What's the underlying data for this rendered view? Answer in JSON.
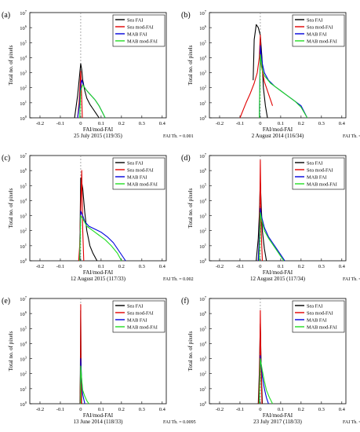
{
  "figure": {
    "common": {
      "type": "line",
      "ylabel": "Total no. of pixels",
      "xlabel": "FAI/mod-FAI",
      "x_ticks": [
        "-0.2",
        "-0.1",
        "0",
        "0.1",
        "0.2",
        "0.3",
        "0.4"
      ],
      "x_range": [
        -0.25,
        0.42
      ],
      "y_scale": "log",
      "y_exponents": [
        "0",
        "1",
        "2",
        "3",
        "4",
        "5",
        "6",
        "7"
      ],
      "y_tick_base": "10",
      "legend": [
        "Sea FAI",
        "Sea mod-FAI",
        "MAB FAI",
        "MAB mod-FAI"
      ],
      "legend_placement": "top-right",
      "reference_line": "dashed vertical line at x = 0"
    },
    "colors": {
      "Sea FAI": "#000000",
      "Sea mod-FAI": "#e00000",
      "MAB FAI": "#0000dd",
      "MAB mod-FAI": "#22dd22",
      "reference_line": "#888888"
    }
  },
  "chart_data": [
    {
      "panel": "(a)",
      "caption": "25 July 2015 (119/35)",
      "threshold": "FAI Th. = 0.001",
      "series": [
        {
          "name": "Sea FAI",
          "x": [
            -0.03,
            -0.015,
            -0.005,
            0,
            0.005,
            0.01,
            0.02,
            0.03,
            0.045,
            0.06,
            0.075,
            0.09
          ],
          "y": [
            0,
            1.5,
            2.9,
            3.6,
            3.2,
            2.5,
            1.8,
            1.3,
            0.9,
            0.6,
            0.3,
            0
          ]
        },
        {
          "name": "Sea mod-FAI",
          "x": [
            -0.015,
            -0.008,
            -0.003,
            0,
            0.003,
            0.008
          ],
          "y": [
            0,
            1,
            2.2,
            3.1,
            2,
            0
          ]
        },
        {
          "name": "MAB FAI",
          "x": [
            -0.015,
            -0.005,
            0,
            0.005,
            0.015,
            0.03,
            0.05,
            0.07,
            0.09,
            0.105,
            0.12
          ],
          "y": [
            0,
            1,
            2.2,
            2.5,
            2.1,
            1.8,
            1.5,
            1.2,
            0.8,
            0.4,
            0
          ]
        },
        {
          "name": "MAB mod-FAI",
          "x": [
            -0.005,
            0,
            0.01,
            0.03,
            0.05,
            0.07,
            0.09,
            0.105,
            0.12
          ],
          "y": [
            0,
            1.8,
            2.2,
            1.8,
            1.5,
            1.2,
            0.8,
            0.4,
            0
          ]
        }
      ]
    },
    {
      "panel": "(b)",
      "caption": "2 August 2014 (116/34)",
      "threshold": "FAI Th. = 0.0016",
      "series": [
        {
          "name": "Sea FAI",
          "x": [
            -0.035,
            -0.03,
            -0.02,
            -0.01,
            0,
            0.008,
            0.015,
            0.025,
            0.035
          ],
          "y": [
            2.5,
            5.2,
            6.2,
            6,
            5.5,
            4,
            2,
            0.8,
            0
          ]
        },
        {
          "name": "Sea mod-FAI",
          "x": [
            -0.1,
            -0.07,
            -0.05,
            -0.03,
            -0.015,
            -0.005,
            0,
            0.005,
            0.02,
            0.04,
            0.06
          ],
          "y": [
            0,
            1,
            1.6,
            2.3,
            3,
            4,
            5.5,
            3.5,
            2.4,
            1.6,
            0.8
          ]
        },
        {
          "name": "MAB FAI",
          "x": [
            -0.005,
            0,
            0.01,
            0.02,
            0.04,
            0.07,
            0.1,
            0.13,
            0.16,
            0.2,
            0.23
          ],
          "y": [
            0,
            4.8,
            3.6,
            3,
            2.5,
            2.1,
            1.8,
            1.5,
            1.2,
            0.8,
            0
          ]
        },
        {
          "name": "MAB mod-FAI",
          "x": [
            -0.005,
            0,
            0.01,
            0.02,
            0.05,
            0.08,
            0.11,
            0.14,
            0.17,
            0.2,
            0.23
          ],
          "y": [
            0,
            4.2,
            3.2,
            2.8,
            2.3,
            2,
            1.7,
            1.4,
            1.1,
            0.7,
            0
          ]
        }
      ]
    },
    {
      "panel": "(c)",
      "caption": "12 August 2015 (117/33)",
      "threshold": "FAI Th. = 0.002",
      "series": [
        {
          "name": "Sea FAI",
          "x": [
            -0.005,
            0,
            0.005,
            0.01,
            0.015,
            0.02,
            0.03,
            0.045,
            0.06,
            0.08
          ],
          "y": [
            0,
            5.5,
            5.2,
            4.8,
            4,
            3.2,
            2,
            1,
            0.5,
            0
          ]
        },
        {
          "name": "Sea mod-FAI",
          "x": [
            -0.01,
            -0.005,
            0,
            0.005,
            0.01,
            0.015
          ],
          "y": [
            0,
            1,
            3.5,
            6,
            2,
            0
          ]
        },
        {
          "name": "MAB FAI",
          "x": [
            -0.005,
            0,
            0.01,
            0.02,
            0.04,
            0.07,
            0.1,
            0.13,
            0.16,
            0.19,
            0.22
          ],
          "y": [
            0,
            3.3,
            3,
            2.6,
            2.3,
            2.1,
            1.9,
            1.6,
            1.2,
            0.6,
            0
          ]
        },
        {
          "name": "MAB mod-FAI",
          "x": [
            -0.005,
            0,
            0.01,
            0.03,
            0.06,
            0.09,
            0.12,
            0.15,
            0.18,
            0.2
          ],
          "y": [
            0,
            3,
            2.8,
            2.3,
            2,
            1.7,
            1.4,
            1,
            0.5,
            0
          ]
        }
      ]
    },
    {
      "panel": "(d)",
      "caption": "12 August 2015 (117/34)",
      "threshold": "FAI Th. = 0.0025",
      "series": [
        {
          "name": "Sea FAI",
          "x": [
            -0.02,
            -0.01,
            -0.005,
            0,
            0.005,
            0.01,
            0.02,
            0.03
          ],
          "y": [
            0,
            1.5,
            3,
            5.3,
            3.5,
            2,
            0.8,
            0
          ]
        },
        {
          "name": "Sea mod-FAI",
          "x": [
            -0.01,
            -0.004,
            0,
            0.004,
            0.01
          ],
          "y": [
            0,
            2,
            6.7,
            2,
            0
          ]
        },
        {
          "name": "MAB FAI",
          "x": [
            -0.01,
            -0.003,
            0,
            0.005,
            0.02,
            0.04,
            0.06,
            0.08,
            0.1,
            0.12
          ],
          "y": [
            0,
            2,
            3.5,
            3,
            2.2,
            1.6,
            1.2,
            0.8,
            0.4,
            0
          ]
        },
        {
          "name": "MAB mod-FAI",
          "x": [
            -0.005,
            0,
            0.005,
            0.02,
            0.04,
            0.06,
            0.08,
            0.1,
            0.115
          ],
          "y": [
            0,
            3.2,
            2.8,
            2,
            1.5,
            1.1,
            0.7,
            0.3,
            0
          ]
        }
      ]
    },
    {
      "panel": "(e)",
      "caption": "13 June 2014 (118/33)",
      "threshold": "FAI Th. = 0.0095",
      "series": [
        {
          "name": "Sea FAI",
          "x": [
            -0.004,
            -0.002,
            0,
            0.002,
            0.004
          ],
          "y": [
            0,
            2,
            6.2,
            2,
            0
          ]
        },
        {
          "name": "Sea mod-FAI",
          "x": [
            -0.003,
            -0.001,
            0,
            0.001,
            0.003
          ],
          "y": [
            0,
            2.5,
            6.6,
            2.5,
            0
          ]
        },
        {
          "name": "MAB FAI",
          "x": [
            -0.002,
            0,
            0.005,
            0.01,
            0.02
          ],
          "y": [
            0,
            3,
            1.5,
            0.6,
            0
          ]
        },
        {
          "name": "MAB mod-FAI",
          "x": [
            -0.002,
            0,
            0.005,
            0.01,
            0.02,
            0.03,
            0.04
          ],
          "y": [
            0,
            2.5,
            1.6,
            0.9,
            0.5,
            0.2,
            0
          ]
        }
      ]
    },
    {
      "panel": "(f)",
      "caption": "23 July 2017 (118/33)",
      "threshold": "FAI Th. = 0.0025",
      "series": [
        {
          "name": "Sea FAI",
          "x": [
            -0.01,
            -0.005,
            0,
            0.005,
            0.01
          ],
          "y": [
            0,
            2,
            5.3,
            2,
            0
          ]
        },
        {
          "name": "Sea mod-FAI",
          "x": [
            -0.008,
            -0.003,
            0,
            0.003,
            0.008
          ],
          "y": [
            0,
            2.5,
            6.2,
            2.5,
            0
          ]
        },
        {
          "name": "MAB FAI",
          "x": [
            -0.005,
            0,
            0.005,
            0.01,
            0.02,
            0.03,
            0.04
          ],
          "y": [
            0,
            3.2,
            2.5,
            1.8,
            1,
            0.4,
            0
          ]
        },
        {
          "name": "MAB mod-FAI",
          "x": [
            -0.005,
            0,
            0.01,
            0.02,
            0.03,
            0.045,
            0.06
          ],
          "y": [
            0,
            3,
            2.2,
            1.5,
            0.9,
            0.4,
            0
          ]
        }
      ]
    }
  ]
}
